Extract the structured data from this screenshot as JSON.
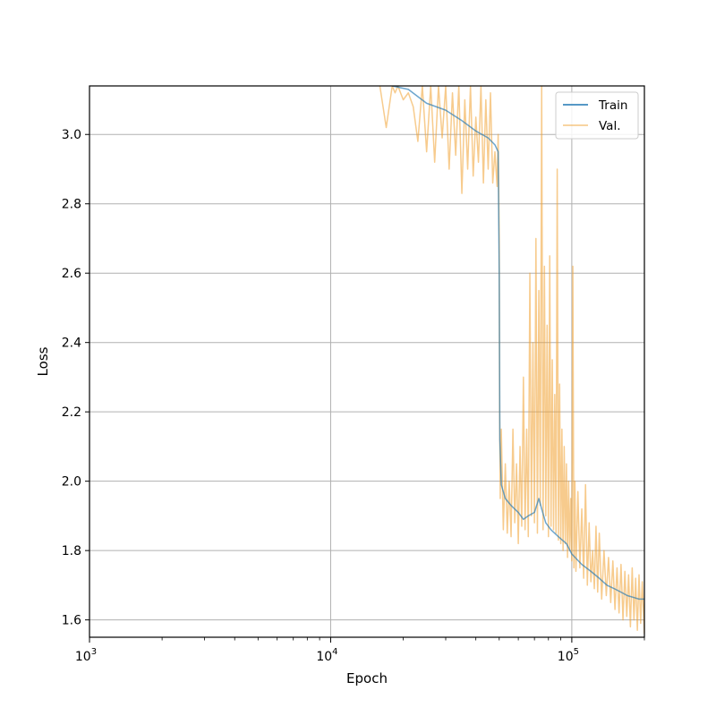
{
  "chart_data": {
    "type": "line",
    "title": "",
    "xlabel": "Epoch",
    "ylabel": "Loss",
    "xscale": "log",
    "xlim": [
      1000,
      200000
    ],
    "ylim": [
      1.55,
      3.14
    ],
    "grid": true,
    "legend_position": "top-right",
    "x_ticks": [
      {
        "value": 1000,
        "base": "10",
        "exp": "3"
      },
      {
        "value": 10000,
        "base": "10",
        "exp": "4"
      },
      {
        "value": 100000,
        "base": "10",
        "exp": "5"
      }
    ],
    "y_ticks": [
      {
        "value": 1.6,
        "label": "1.6"
      },
      {
        "value": 1.8,
        "label": "1.8"
      },
      {
        "value": 2.0,
        "label": "2.0"
      },
      {
        "value": 2.2,
        "label": "2.2"
      },
      {
        "value": 2.4,
        "label": "2.4"
      },
      {
        "value": 2.6,
        "label": "2.6"
      },
      {
        "value": 2.8,
        "label": "2.8"
      },
      {
        "value": 3.0,
        "label": "3.0"
      }
    ],
    "series": [
      {
        "name": "Train",
        "color": "#1f77b4",
        "x": [
          18000,
          21000,
          25000,
          30000,
          35000,
          40000,
          45000,
          48000,
          49500,
          50000,
          50300,
          51000,
          53000,
          56000,
          60000,
          63000,
          66000,
          70000,
          73000,
          75000,
          78000,
          82000,
          88000,
          95000,
          100000,
          110000,
          120000,
          130000,
          140000,
          150000,
          160000,
          170000,
          180000,
          190000,
          200000
        ],
        "y": [
          3.14,
          3.13,
          3.09,
          3.07,
          3.04,
          3.01,
          2.99,
          2.97,
          2.95,
          2.6,
          2.12,
          1.99,
          1.95,
          1.93,
          1.91,
          1.89,
          1.9,
          1.91,
          1.95,
          1.92,
          1.88,
          1.86,
          1.84,
          1.82,
          1.79,
          1.76,
          1.74,
          1.72,
          1.7,
          1.69,
          1.68,
          1.67,
          1.665,
          1.66,
          1.66
        ]
      },
      {
        "name": "Val.",
        "color": "#f0a030",
        "x": [
          16000,
          17000,
          18000,
          18500,
          19000,
          20000,
          21000,
          22000,
          23000,
          24000,
          25000,
          26000,
          27000,
          28000,
          29000,
          30000,
          31000,
          32000,
          33000,
          34000,
          35000,
          36000,
          37000,
          38000,
          39000,
          40000,
          41000,
          42000,
          43000,
          44000,
          45000,
          46000,
          47000,
          48000,
          49000,
          49500,
          50000,
          50200,
          50500,
          51000,
          52000,
          53000,
          54000,
          55000,
          56000,
          57000,
          58000,
          59000,
          60000,
          61000,
          62000,
          63000,
          64000,
          65000,
          66000,
          67000,
          68000,
          69000,
          70000,
          71000,
          72000,
          73000,
          74000,
          75000,
          76000,
          77000,
          78000,
          79000,
          80000,
          81000,
          82000,
          83000,
          84000,
          85000,
          86000,
          87000,
          88000,
          89000,
          90000,
          91000,
          92000,
          93000,
          94000,
          95000,
          96000,
          97000,
          98000,
          99000,
          100000,
          101000,
          102000,
          103000,
          104000,
          106000,
          108000,
          110000,
          112000,
          114000,
          116000,
          118000,
          120000,
          122000,
          124000,
          126000,
          128000,
          130000,
          133000,
          136000,
          139000,
          142000,
          145000,
          148000,
          151000,
          154000,
          157000,
          160000,
          163000,
          166000,
          169000,
          172000,
          175000,
          178000,
          181000,
          184000,
          187000,
          190000,
          193000,
          196000,
          200000
        ],
        "y": [
          3.14,
          3.02,
          3.14,
          3.12,
          3.14,
          3.1,
          3.12,
          3.08,
          2.98,
          3.14,
          2.95,
          3.14,
          2.92,
          3.14,
          2.99,
          3.14,
          2.9,
          3.12,
          2.94,
          3.14,
          2.83,
          3.1,
          2.9,
          3.14,
          2.88,
          3.05,
          2.92,
          3.14,
          2.86,
          3.1,
          2.9,
          3.12,
          2.86,
          2.95,
          2.85,
          3.0,
          2.7,
          2.2,
          1.95,
          2.15,
          1.86,
          2.05,
          1.85,
          2.0,
          1.84,
          2.15,
          1.88,
          2.05,
          1.82,
          2.1,
          1.87,
          2.3,
          1.86,
          2.15,
          1.84,
          2.6,
          1.9,
          2.4,
          1.88,
          2.7,
          1.85,
          2.55,
          1.93,
          3.14,
          1.86,
          2.62,
          1.9,
          2.45,
          1.84,
          2.65,
          1.87,
          2.35,
          1.86,
          2.25,
          1.85,
          2.9,
          1.83,
          2.28,
          1.82,
          2.15,
          1.8,
          2.1,
          1.82,
          2.05,
          1.78,
          2.0,
          1.8,
          1.95,
          1.77,
          2.62,
          1.75,
          2.0,
          1.74,
          1.97,
          1.75,
          1.92,
          1.72,
          1.99,
          1.7,
          1.88,
          1.71,
          1.8,
          1.69,
          1.87,
          1.68,
          1.85,
          1.66,
          1.8,
          1.67,
          1.78,
          1.65,
          1.77,
          1.63,
          1.75,
          1.62,
          1.76,
          1.6,
          1.74,
          1.61,
          1.73,
          1.58,
          1.75,
          1.6,
          1.72,
          1.57,
          1.73,
          1.59,
          1.71,
          1.56
        ]
      }
    ]
  }
}
